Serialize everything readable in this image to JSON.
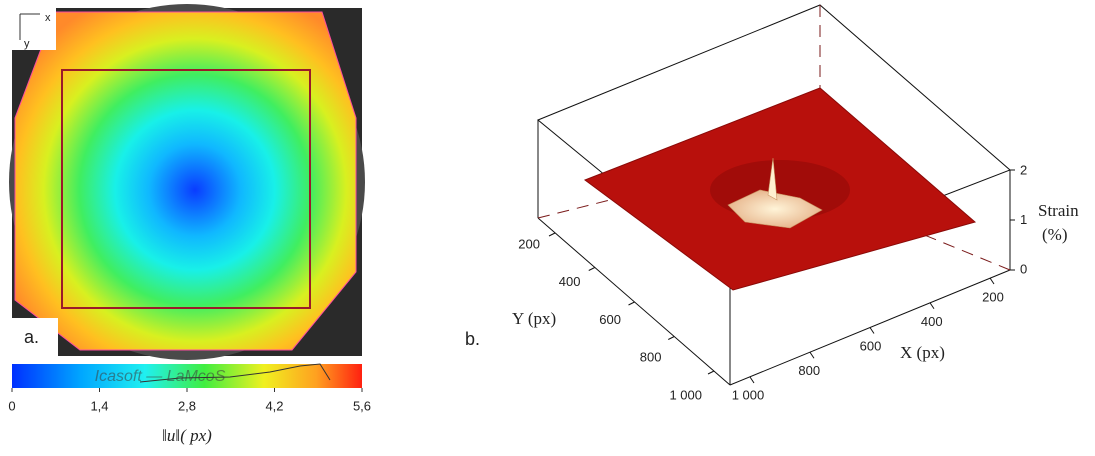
{
  "panel_a": {
    "label": "a.",
    "axes_icon": {
      "x": "x",
      "y": "y"
    },
    "colorbar": {
      "ticks": [
        0,
        {
          "value": 1.4,
          "label": "1,4"
        },
        {
          "value": 2.8,
          "label": "2,8"
        },
        {
          "value": 4.2,
          "label": "4,2"
        },
        {
          "value": 5.6,
          "label": "5,6"
        }
      ],
      "title": "‖u‖( px)",
      "watermark": "Icasoft — LaMcoS"
    }
  },
  "panel_b": {
    "label": "b.",
    "x_axis": {
      "label": "X (px)",
      "ticks": [
        200,
        400,
        600,
        800,
        {
          "value": 1000,
          "label": "1 000"
        }
      ]
    },
    "y_axis": {
      "label": "Y (px)",
      "ticks": [
        200,
        400,
        600,
        800,
        {
          "value": 1000,
          "label": "1 000"
        }
      ]
    },
    "z_axis": {
      "label_lines": [
        "Strain",
        "(%)"
      ],
      "ticks": [
        0,
        1,
        2
      ]
    }
  }
}
